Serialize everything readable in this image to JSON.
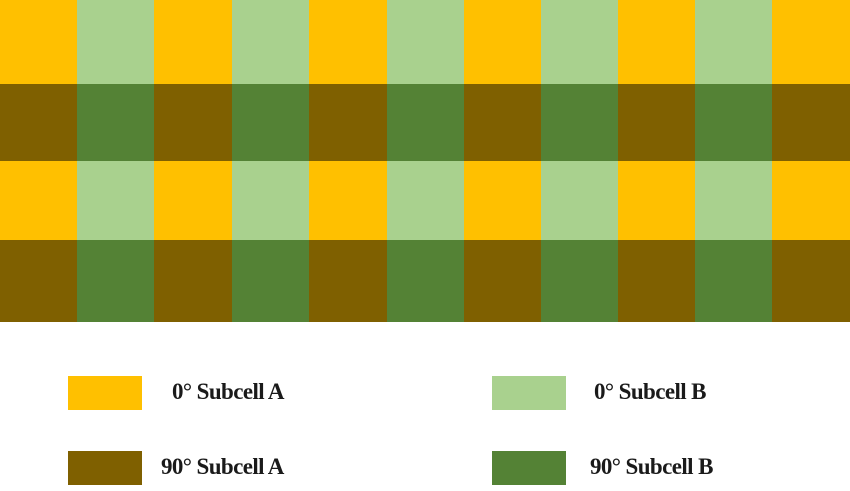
{
  "colors": {
    "subcell_a_0": "#ffc000",
    "subcell_b_0": "#a9d18e",
    "subcell_a_90": "#7f6000",
    "subcell_b_90": "#548235"
  },
  "grid": {
    "rows": [
      [
        "subcell_a_0",
        "subcell_b_0",
        "subcell_a_0",
        "subcell_b_0",
        "subcell_a_0",
        "subcell_b_0",
        "subcell_a_0",
        "subcell_b_0",
        "subcell_a_0",
        "subcell_b_0",
        "subcell_a_0"
      ],
      [
        "subcell_a_90",
        "subcell_b_90",
        "subcell_a_90",
        "subcell_b_90",
        "subcell_a_90",
        "subcell_b_90",
        "subcell_a_90",
        "subcell_b_90",
        "subcell_a_90",
        "subcell_b_90",
        "subcell_a_90"
      ],
      [
        "subcell_a_0",
        "subcell_b_0",
        "subcell_a_0",
        "subcell_b_0",
        "subcell_a_0",
        "subcell_b_0",
        "subcell_a_0",
        "subcell_b_0",
        "subcell_a_0",
        "subcell_b_0",
        "subcell_a_0"
      ],
      [
        "subcell_a_90",
        "subcell_b_90",
        "subcell_a_90",
        "subcell_b_90",
        "subcell_a_90",
        "subcell_b_90",
        "subcell_a_90",
        "subcell_b_90",
        "subcell_a_90",
        "subcell_b_90",
        "subcell_a_90"
      ]
    ]
  },
  "legend": {
    "zero_a": {
      "label": "0° Subcell A",
      "color": "#ffc000"
    },
    "zero_b": {
      "label": "0° Subcell B",
      "color": "#a9d18e"
    },
    "ninety_a": {
      "label": "90° Subcell A",
      "color": "#7f6000"
    },
    "ninety_b": {
      "label": "90° Subcell B",
      "color": "#548235"
    }
  }
}
